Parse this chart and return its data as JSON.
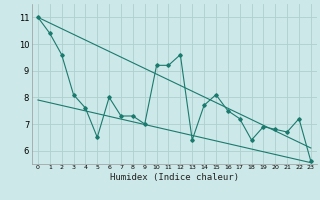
{
  "xlabel": "Humidex (Indice chaleur)",
  "bg_color": "#cde8e8",
  "grid_color": "#aed0d0",
  "line_color": "#1a7a6e",
  "xlim": [
    -0.5,
    23.5
  ],
  "ylim": [
    5.5,
    11.5
  ],
  "xticks": [
    0,
    1,
    2,
    3,
    4,
    5,
    6,
    7,
    8,
    9,
    10,
    11,
    12,
    13,
    14,
    15,
    16,
    17,
    18,
    19,
    20,
    21,
    22,
    23
  ],
  "yticks": [
    6,
    7,
    8,
    9,
    10,
    11
  ],
  "series1_x": [
    0,
    1,
    2,
    3,
    4,
    5,
    6,
    7,
    8,
    9,
    10,
    11,
    12,
    13,
    14,
    15,
    16,
    17,
    18,
    19,
    20,
    21,
    22,
    23
  ],
  "series1_y": [
    11.0,
    10.4,
    9.6,
    8.1,
    7.6,
    6.5,
    8.0,
    7.3,
    7.3,
    7.0,
    9.2,
    9.2,
    9.6,
    6.4,
    7.7,
    8.1,
    7.5,
    7.2,
    6.4,
    6.9,
    6.8,
    6.7,
    7.2,
    5.6
  ],
  "trend1_x": [
    0,
    23
  ],
  "trend1_y": [
    11.0,
    6.1
  ],
  "trend2_x": [
    0,
    23
  ],
  "trend2_y": [
    7.9,
    5.55
  ]
}
